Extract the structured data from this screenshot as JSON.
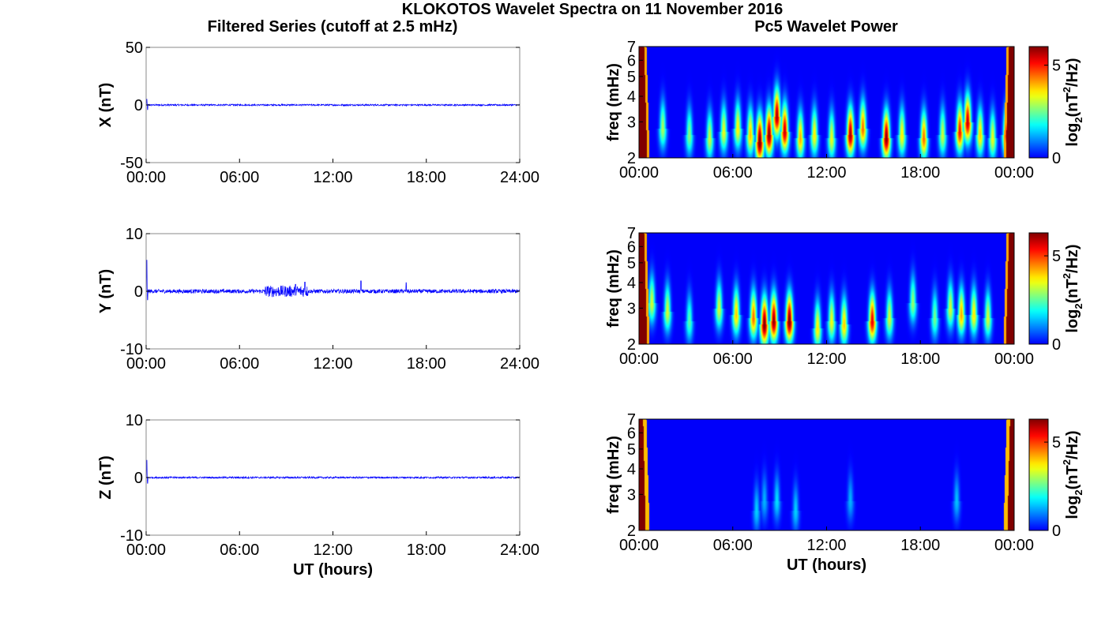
{
  "figure": {
    "title": "KLOKOTOS Wavelet Spectra on 11 November 2016",
    "left_title": "Filtered Series (cutoff at 2.5 mHz)",
    "right_title": "Pc5 Wavelet Power"
  },
  "colors": {
    "trace": "#0000ff",
    "axes": "#000000",
    "background": "#ffffff",
    "colormap": "jet",
    "edge_red": "#a50000"
  },
  "chart_data": [
    {
      "type": "line",
      "id": "x-series",
      "ylabel": "X (nT)",
      "xlabel": "",
      "xlim": [
        0,
        24
      ],
      "ylim": [
        -50,
        50
      ],
      "yticks": [
        -50,
        0,
        50
      ],
      "xtick_labels": [
        "00:00",
        "06:00",
        "12:00",
        "18:00",
        "24:00"
      ],
      "noise_amplitude": 0.7,
      "spikes": [
        {
          "x": 0.05,
          "y": 5
        },
        {
          "x": 0.1,
          "y": -4
        }
      ]
    },
    {
      "type": "line",
      "id": "y-series",
      "ylabel": "Y (nT)",
      "xlabel": "",
      "xlim": [
        0,
        24
      ],
      "ylim": [
        -10,
        10
      ],
      "yticks": [
        -10,
        0,
        10
      ],
      "xtick_labels": [
        "00:00",
        "06:00",
        "12:00",
        "18:00",
        "24:00"
      ],
      "noise_amplitude": 0.35,
      "spikes": [
        {
          "x": 0.05,
          "y": 5.4
        },
        {
          "x": 0.1,
          "y": -1.5
        },
        {
          "x": 9.6,
          "y": 1.2
        },
        {
          "x": 10.2,
          "y": 1.6
        },
        {
          "x": 13.8,
          "y": 1.8
        },
        {
          "x": 16.7,
          "y": 1.5
        }
      ],
      "bursts": [
        {
          "from": 7.6,
          "to": 10.4,
          "amp": 1.0
        }
      ]
    },
    {
      "type": "line",
      "id": "z-series",
      "ylabel": "Z (nT)",
      "xlabel": "UT (hours)",
      "xlim": [
        0,
        24
      ],
      "ylim": [
        -10,
        10
      ],
      "yticks": [
        -10,
        0,
        10
      ],
      "xtick_labels": [
        "00:00",
        "06:00",
        "12:00",
        "18:00",
        "24:00"
      ],
      "noise_amplitude": 0.15,
      "spikes": [
        {
          "x": 0.05,
          "y": 3
        },
        {
          "x": 0.1,
          "y": -1
        }
      ]
    },
    {
      "type": "heatmap",
      "id": "x-power",
      "ylabel": "freq (mHz)",
      "xlabel": "",
      "xlim": [
        0,
        24
      ],
      "ylim": [
        2,
        7
      ],
      "yscale": "log",
      "yticks": [
        2,
        3,
        4,
        5,
        6,
        7
      ],
      "xtick_labels": [
        "00:00",
        "06:00",
        "12:00",
        "18:00",
        "00:00"
      ],
      "colorbar": {
        "label": "log2(nT2/Hz)",
        "range": [
          0,
          6
        ],
        "ticks": [
          0,
          5
        ]
      },
      "blobs": [
        {
          "t": 1.5,
          "f": 2.8,
          "p": 2.6
        },
        {
          "t": 3.2,
          "f": 2.6,
          "p": 2.4
        },
        {
          "t": 4.5,
          "f": 2.5,
          "p": 2.8
        },
        {
          "t": 5.4,
          "f": 2.7,
          "p": 3.0
        },
        {
          "t": 6.3,
          "f": 2.8,
          "p": 3.2
        },
        {
          "t": 7.1,
          "f": 2.6,
          "p": 3.5
        },
        {
          "t": 7.7,
          "f": 2.4,
          "p": 5.6
        },
        {
          "t": 8.3,
          "f": 2.6,
          "p": 5.4
        },
        {
          "t": 8.8,
          "f": 3.2,
          "p": 5.2
        },
        {
          "t": 9.3,
          "f": 2.7,
          "p": 5.0
        },
        {
          "t": 10.3,
          "f": 2.5,
          "p": 3.6
        },
        {
          "t": 11.2,
          "f": 2.6,
          "p": 3.2
        },
        {
          "t": 12.3,
          "f": 2.5,
          "p": 3.0
        },
        {
          "t": 13.5,
          "f": 2.6,
          "p": 5.2
        },
        {
          "t": 14.3,
          "f": 2.8,
          "p": 4.0
        },
        {
          "t": 15.8,
          "f": 2.5,
          "p": 5.4
        },
        {
          "t": 16.8,
          "f": 2.6,
          "p": 3.2
        },
        {
          "t": 18.2,
          "f": 2.5,
          "p": 4.0
        },
        {
          "t": 19.4,
          "f": 2.6,
          "p": 2.8
        },
        {
          "t": 20.5,
          "f": 2.7,
          "p": 4.6
        },
        {
          "t": 21.0,
          "f": 3.0,
          "p": 5.0
        },
        {
          "t": 21.8,
          "f": 2.6,
          "p": 3.4
        },
        {
          "t": 22.6,
          "f": 2.5,
          "p": 3.0
        },
        {
          "t": 23.5,
          "f": 2.6,
          "p": 4.6
        }
      ]
    },
    {
      "type": "heatmap",
      "id": "y-power",
      "ylabel": "freq (mHz)",
      "xlabel": "",
      "xlim": [
        0,
        24
      ],
      "ylim": [
        2,
        7
      ],
      "yscale": "log",
      "yticks": [
        2,
        3,
        4,
        5,
        6,
        7
      ],
      "xtick_labels": [
        "00:00",
        "06:00",
        "12:00",
        "18:00",
        "00:00"
      ],
      "colorbar": {
        "label": "log2(nT2/Hz)",
        "range": [
          0,
          6.3
        ],
        "ticks": [
          0,
          5
        ]
      },
      "blobs": [
        {
          "t": 0.8,
          "f": 3.2,
          "p": 3.0
        },
        {
          "t": 1.8,
          "f": 2.9,
          "p": 3.0
        },
        {
          "t": 3.2,
          "f": 2.6,
          "p": 2.2
        },
        {
          "t": 5.1,
          "f": 3.0,
          "p": 3.0
        },
        {
          "t": 6.2,
          "f": 2.8,
          "p": 3.6
        },
        {
          "t": 7.3,
          "f": 2.7,
          "p": 4.2
        },
        {
          "t": 8.0,
          "f": 2.5,
          "p": 5.8
        },
        {
          "t": 8.6,
          "f": 2.6,
          "p": 5.6
        },
        {
          "t": 9.6,
          "f": 2.6,
          "p": 5.8
        },
        {
          "t": 11.4,
          "f": 2.4,
          "p": 3.4
        },
        {
          "t": 12.3,
          "f": 2.6,
          "p": 3.2
        },
        {
          "t": 13.1,
          "f": 2.5,
          "p": 3.6
        },
        {
          "t": 14.9,
          "f": 2.6,
          "p": 5.0
        },
        {
          "t": 16.0,
          "f": 2.7,
          "p": 3.0
        },
        {
          "t": 17.5,
          "f": 3.2,
          "p": 2.6
        },
        {
          "t": 18.9,
          "f": 2.7,
          "p": 2.4
        },
        {
          "t": 19.9,
          "f": 3.0,
          "p": 3.0
        },
        {
          "t": 20.6,
          "f": 2.8,
          "p": 3.8
        },
        {
          "t": 21.4,
          "f": 2.8,
          "p": 3.4
        },
        {
          "t": 22.3,
          "f": 2.7,
          "p": 3.0
        }
      ]
    },
    {
      "type": "heatmap",
      "id": "z-power",
      "ylabel": "freq (mHz)",
      "xlabel": "UT (hours)",
      "xlim": [
        0,
        24
      ],
      "ylim": [
        2,
        7
      ],
      "yscale": "log",
      "yticks": [
        2,
        3,
        4,
        5,
        6,
        7
      ],
      "xtick_labels": [
        "00:00",
        "06:00",
        "12:00",
        "18:00",
        "00:00"
      ],
      "colorbar": {
        "label": "log2(nT2/Hz)",
        "range": [
          0,
          6.3
        ],
        "ticks": [
          0,
          5
        ]
      },
      "blobs": [
        {
          "t": 7.5,
          "f": 2.5,
          "p": 1.4
        },
        {
          "t": 8.0,
          "f": 2.8,
          "p": 1.2
        },
        {
          "t": 8.8,
          "f": 2.8,
          "p": 1.5
        },
        {
          "t": 10.0,
          "f": 2.5,
          "p": 1.4
        },
        {
          "t": 13.5,
          "f": 2.8,
          "p": 1.2
        },
        {
          "t": 20.3,
          "f": 2.8,
          "p": 1.3
        }
      ]
    }
  ]
}
